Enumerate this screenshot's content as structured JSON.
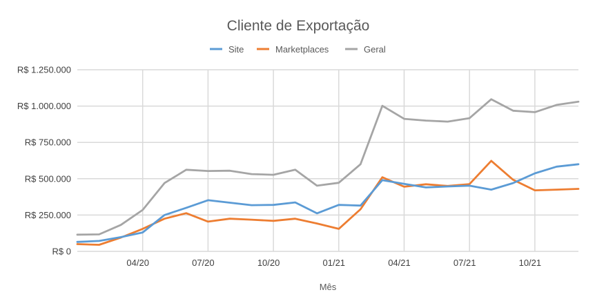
{
  "chart_data": {
    "type": "line",
    "title": "Cliente de Exportação",
    "xlabel": "Mês",
    "ylabel": "",
    "x": [
      "01/20",
      "02/20",
      "03/20",
      "04/20",
      "05/20",
      "06/20",
      "07/20",
      "08/20",
      "09/20",
      "10/20",
      "11/20",
      "12/20",
      "01/21",
      "02/21",
      "03/21",
      "04/21",
      "05/21",
      "06/21",
      "07/21",
      "08/21",
      "09/21",
      "10/21",
      "11/21",
      "12/21"
    ],
    "x_tick_labels": [
      "04/20",
      "07/20",
      "10/20",
      "01/21",
      "04/21",
      "07/21",
      "10/21"
    ],
    "y_tick_labels": [
      "R$ 0",
      "R$ 250.000",
      "R$ 500.000",
      "R$ 750.000",
      "R$ 1.000.000",
      "R$ 1.250.000"
    ],
    "ylim": [
      0,
      1250000
    ],
    "grid": true,
    "legend_position": "top",
    "series": [
      {
        "name": "Site",
        "color": "#5B9BD5",
        "values": [
          65000,
          72000,
          98000,
          130000,
          250000,
          300000,
          352000,
          335000,
          318000,
          320000,
          337000,
          262000,
          320000,
          315000,
          490000,
          465000,
          440000,
          447000,
          452000,
          425000,
          470000,
          537000,
          583000,
          600000
        ]
      },
      {
        "name": "Marketplaces",
        "color": "#ED7D31",
        "values": [
          50000,
          45000,
          95000,
          155000,
          225000,
          263000,
          205000,
          225000,
          218000,
          210000,
          225000,
          192000,
          155000,
          290000,
          510000,
          445000,
          462000,
          450000,
          463000,
          623000,
          493000,
          420000,
          425000,
          430000
        ]
      },
      {
        "name": "Geral",
        "color": "#A5A5A5",
        "values": [
          115000,
          117000,
          182000,
          285000,
          470000,
          562000,
          553000,
          555000,
          532000,
          527000,
          562000,
          452000,
          472000,
          600000,
          1002000,
          912000,
          900000,
          893000,
          917000,
          1047000,
          968000,
          958000,
          1008000,
          1030000
        ]
      }
    ]
  }
}
